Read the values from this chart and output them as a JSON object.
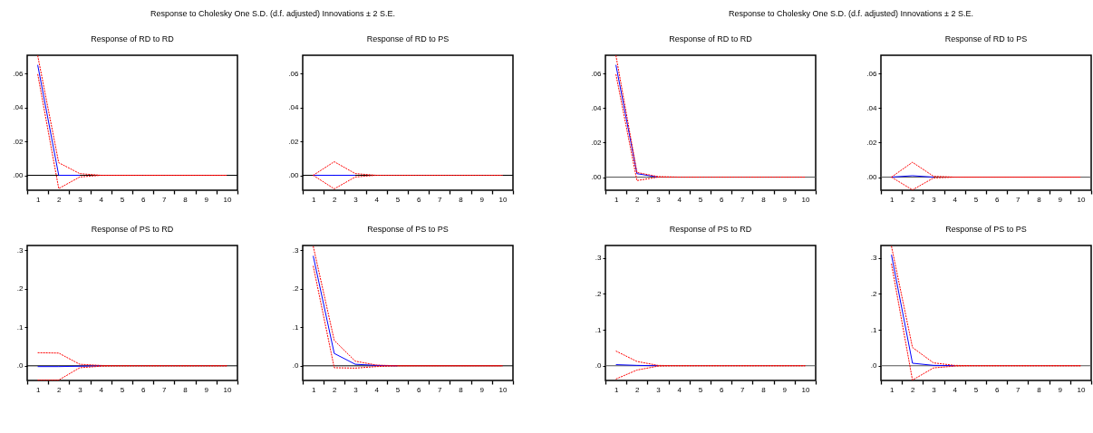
{
  "chart_data": [
    {
      "type": "other",
      "title": "Response to Cholesky One S.D. (d.f. adjusted) Innovations ± 2 S.E."
    },
    {
      "type": "line",
      "title": "Response of RD to RD",
      "categories": [
        "1",
        "2",
        "3",
        "4",
        "5",
        "6",
        "7",
        "8",
        "9",
        "10"
      ],
      "ylim": [
        -0.0088,
        0.0707
      ],
      "yticks": [
        {
          "value": 0,
          "label": ".00"
        },
        {
          "value": 0.02,
          "label": ".02"
        },
        {
          "value": 0.04,
          "label": ".04"
        },
        {
          "value": 0.06,
          "label": ".06"
        }
      ],
      "grid": false,
      "legend": false,
      "marker": "none",
      "ref_lines": [
        {
          "axis": "y",
          "value": 0,
          "color": "#000000"
        }
      ],
      "series": [
        {
          "color": "#0000ff",
          "line_style": "solid",
          "values": [
            0.065,
            0,
            0,
            null,
            null,
            null,
            null,
            null,
            null,
            null
          ]
        },
        {
          "color": "#ff0000",
          "line_style": "dashed",
          "values": [
            0.0705,
            0.0074,
            0.001,
            0,
            0,
            0,
            0,
            0,
            0,
            0
          ]
        },
        {
          "color": "#ff0000",
          "line_style": "dashed",
          "values": [
            0.0596,
            -0.0078,
            -0.001,
            0,
            0,
            0,
            0,
            0,
            0,
            0
          ]
        }
      ]
    },
    {
      "type": "line",
      "title": "Response of RD to PS",
      "categories": [
        "1",
        "2",
        "3",
        "4",
        "5",
        "6",
        "7",
        "8",
        "9",
        "10"
      ],
      "ylim": [
        -0.0088,
        0.0707
      ],
      "yticks": [
        {
          "value": 0,
          "label": ".00"
        },
        {
          "value": 0.02,
          "label": ".02"
        },
        {
          "value": 0.04,
          "label": ".04"
        },
        {
          "value": 0.06,
          "label": ".06"
        }
      ],
      "grid": false,
      "legend": false,
      "marker": "none",
      "ref_lines": [
        {
          "axis": "y",
          "value": 0,
          "color": "#000000"
        }
      ],
      "series": [
        {
          "color": "#0000ff",
          "line_style": "solid",
          "values": [
            0,
            0,
            0,
            null,
            null,
            null,
            null,
            null,
            null,
            null
          ]
        },
        {
          "color": "#ff0000",
          "line_style": "dashed",
          "values": [
            0,
            0.008,
            0.001,
            0,
            0,
            0,
            0,
            0,
            0,
            0
          ]
        },
        {
          "color": "#ff0000",
          "line_style": "dashed",
          "values": [
            0,
            -0.008,
            -0.001,
            0,
            0,
            0,
            0,
            0,
            0,
            0
          ]
        }
      ]
    },
    {
      "type": "line",
      "title": "Response of PS to RD",
      "categories": [
        "1",
        "2",
        "3",
        "4",
        "5",
        "6",
        "7",
        "8",
        "9",
        "10"
      ],
      "ylim": [
        -0.038,
        0.312
      ],
      "yticks": [
        {
          "value": 0,
          "label": ".0"
        },
        {
          "value": 0.1,
          "label": ".1"
        },
        {
          "value": 0.2,
          "label": ".2"
        },
        {
          "value": 0.3,
          "label": ".3"
        }
      ],
      "grid": false,
      "legend": false,
      "marker": "none",
      "ref_lines": [
        {
          "axis": "y",
          "value": 0,
          "color": "#000000"
        }
      ],
      "series": [
        {
          "color": "#0000ff",
          "line_style": "solid",
          "values": [
            -0.002,
            -0.002,
            -0.001,
            0,
            null,
            null,
            null,
            null,
            null,
            null
          ]
        },
        {
          "color": "#ff0000",
          "line_style": "dashed",
          "values": [
            0.034,
            0.033,
            0.004,
            0.001,
            0,
            0,
            0,
            0,
            0,
            0
          ]
        },
        {
          "color": "#ff0000",
          "line_style": "dashed",
          "values": [
            -0.037,
            -0.037,
            -0.005,
            -0.001,
            0,
            0,
            0,
            0,
            0,
            0
          ]
        }
      ]
    },
    {
      "type": "line",
      "title": "Response of PS to PS",
      "categories": [
        "1",
        "2",
        "3",
        "4",
        "5",
        "6",
        "7",
        "8",
        "9",
        "10"
      ],
      "ylim": [
        -0.038,
        0.312
      ],
      "yticks": [
        {
          "value": 0,
          "label": ".0"
        },
        {
          "value": 0.1,
          "label": ".1"
        },
        {
          "value": 0.2,
          "label": ".2"
        },
        {
          "value": 0.3,
          "label": ".3"
        }
      ],
      "grid": false,
      "legend": false,
      "marker": "none",
      "ref_lines": [
        {
          "axis": "y",
          "value": 0,
          "color": "#000000"
        }
      ],
      "series": [
        {
          "color": "#0000ff",
          "line_style": "solid",
          "values": [
            0.285,
            0.032,
            0.004,
            0.001,
            0,
            null,
            null,
            null,
            null,
            null
          ]
        },
        {
          "color": "#ff0000",
          "line_style": "dashed",
          "values": [
            0.31,
            0.066,
            0.012,
            0.002,
            0,
            0,
            0,
            0,
            0,
            0
          ]
        },
        {
          "color": "#ff0000",
          "line_style": "dashed",
          "values": [
            0.259,
            -0.005,
            -0.006,
            -0.002,
            0,
            0,
            0,
            0,
            0,
            0
          ]
        }
      ]
    },
    {
      "type": "other",
      "title": "Response to Cholesky One S.D. (d.f. adjusted) Innovations ± 2 S.E."
    },
    {
      "type": "line",
      "title": "Response of RD to RD",
      "categories": [
        "1",
        "2",
        "3",
        "4",
        "5",
        "6",
        "7",
        "8",
        "9",
        "10"
      ],
      "ylim": [
        -0.0076,
        0.0706
      ],
      "yticks": [
        {
          "value": 0,
          "label": ".00"
        },
        {
          "value": 0.02,
          "label": ".02"
        },
        {
          "value": 0.04,
          "label": ".04"
        },
        {
          "value": 0.06,
          "label": ".06"
        }
      ],
      "grid": false,
      "legend": false,
      "marker": "none",
      "ref_lines": [
        {
          "axis": "y",
          "value": 0,
          "color": "#555555"
        }
      ],
      "series": [
        {
          "color": "#0000ff",
          "line_style": "solid",
          "values": [
            0.065,
            0.002,
            0,
            null,
            null,
            null,
            null,
            null,
            null,
            null
          ]
        },
        {
          "color": "#ff0000",
          "line_style": "dashed",
          "values": [
            0.0705,
            0.0027,
            0.0003,
            0,
            0,
            0,
            0,
            0,
            0,
            0
          ]
        },
        {
          "color": "#ff0000",
          "line_style": "dashed",
          "values": [
            0.0596,
            -0.002,
            0,
            0,
            0,
            0,
            0,
            0,
            0,
            0
          ]
        }
      ]
    },
    {
      "type": "line",
      "title": "Response of RD to PS",
      "categories": [
        "1",
        "2",
        "3",
        "4",
        "5",
        "6",
        "7",
        "8",
        "9",
        "10"
      ],
      "ylim": [
        -0.0076,
        0.0706
      ],
      "yticks": [
        {
          "value": 0,
          "label": ".00"
        },
        {
          "value": 0.02,
          "label": ".02"
        },
        {
          "value": 0.04,
          "label": ".04"
        },
        {
          "value": 0.06,
          "label": ".06"
        }
      ],
      "grid": false,
      "legend": false,
      "marker": "none",
      "ref_lines": [
        {
          "axis": "y",
          "value": 0,
          "color": "#555555"
        }
      ],
      "series": [
        {
          "color": "#0000ff",
          "line_style": "solid",
          "values": [
            0,
            0.0008,
            0,
            null,
            null,
            null,
            null,
            null,
            null,
            null
          ]
        },
        {
          "color": "#ff0000",
          "line_style": "dashed",
          "values": [
            0,
            0.0086,
            0.0005,
            0,
            0,
            0,
            0,
            0,
            0,
            0
          ]
        },
        {
          "color": "#ff0000",
          "line_style": "dashed",
          "values": [
            0,
            -0.0074,
            -0.0005,
            0,
            0,
            0,
            0,
            0,
            0,
            0
          ]
        }
      ]
    },
    {
      "type": "line",
      "title": "Response of PS to RD",
      "categories": [
        "1",
        "2",
        "3",
        "4",
        "5",
        "6",
        "7",
        "8",
        "9",
        "10"
      ],
      "ylim": [
        -0.041,
        0.335
      ],
      "yticks": [
        {
          "value": 0,
          "label": ".0"
        },
        {
          "value": 0.1,
          "label": ".1"
        },
        {
          "value": 0.2,
          "label": ".2"
        },
        {
          "value": 0.3,
          "label": ".3"
        }
      ],
      "grid": false,
      "legend": false,
      "marker": "none",
      "ref_lines": [
        {
          "axis": "y",
          "value": 0,
          "color": "#555555"
        }
      ],
      "series": [
        {
          "color": "#0000ff",
          "line_style": "solid",
          "values": [
            0.003,
            0.001,
            0,
            null,
            null,
            null,
            null,
            null,
            null,
            null
          ]
        },
        {
          "color": "#ff0000",
          "line_style": "dashed",
          "values": [
            0.041,
            0.012,
            0.001,
            0,
            0,
            0,
            0,
            0,
            0,
            0
          ]
        },
        {
          "color": "#ff0000",
          "line_style": "dashed",
          "values": [
            -0.037,
            -0.012,
            -0.001,
            0,
            0,
            0,
            0,
            0,
            0,
            0
          ]
        }
      ]
    },
    {
      "type": "line",
      "title": "Response of PS to PS",
      "categories": [
        "1",
        "2",
        "3",
        "4",
        "5",
        "6",
        "7",
        "8",
        "9",
        "10"
      ],
      "ylim": [
        -0.041,
        0.335
      ],
      "yticks": [
        {
          "value": 0,
          "label": ".0"
        },
        {
          "value": 0.1,
          "label": ".1"
        },
        {
          "value": 0.2,
          "label": ".2"
        },
        {
          "value": 0.3,
          "label": ".3"
        }
      ],
      "grid": false,
      "legend": false,
      "marker": "none",
      "ref_lines": [
        {
          "axis": "y",
          "value": 0,
          "color": "#555555"
        }
      ],
      "series": [
        {
          "color": "#0000ff",
          "line_style": "solid",
          "values": [
            0.309,
            0.007,
            0.001,
            0,
            null,
            null,
            null,
            null,
            null,
            null
          ]
        },
        {
          "color": "#ff0000",
          "line_style": "dashed",
          "values": [
            0.333,
            0.051,
            0.008,
            0.001,
            0,
            0,
            0,
            0,
            0,
            0
          ]
        },
        {
          "color": "#ff0000",
          "line_style": "dashed",
          "values": [
            0.284,
            -0.04,
            -0.006,
            -0.001,
            0,
            0,
            0,
            0,
            0,
            0
          ]
        }
      ]
    }
  ]
}
